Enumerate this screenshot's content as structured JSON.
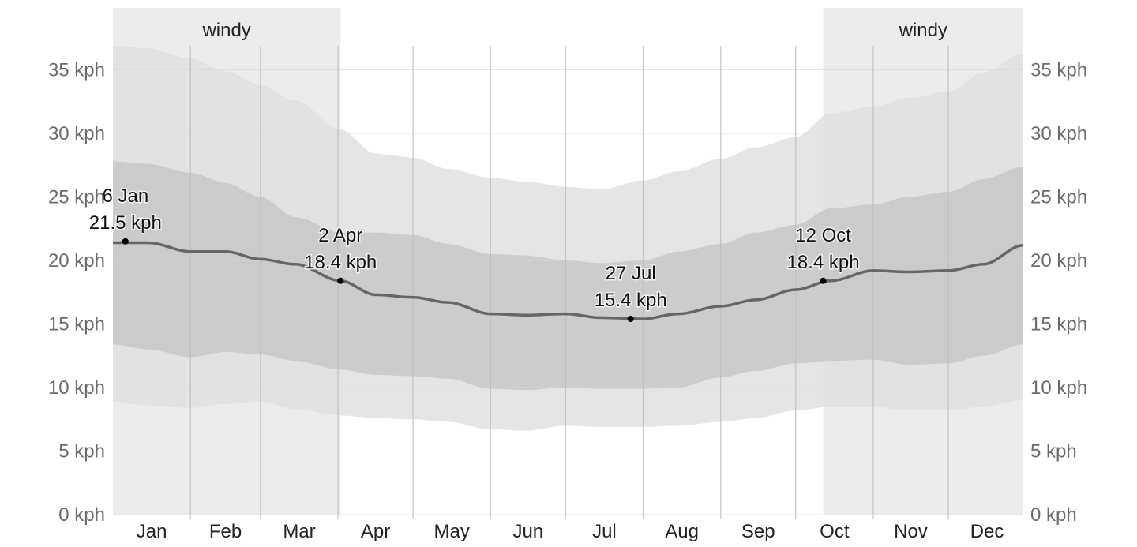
{
  "chart_data": {
    "type": "area",
    "y_unit": "kph",
    "ylim": [
      0,
      37.5
    ],
    "y_ticks": [
      0,
      5,
      10,
      15,
      20,
      25,
      30,
      35
    ],
    "y_tick_labels": [
      "0 kph",
      "5 kph",
      "10 kph",
      "15 kph",
      "20 kph",
      "25 kph",
      "30 kph",
      "35 kph"
    ],
    "months": [
      "Jan",
      "Feb",
      "Mar",
      "Apr",
      "May",
      "Jun",
      "Jul",
      "Aug",
      "Sep",
      "Oct",
      "Nov",
      "Dec"
    ],
    "season_bands": [
      {
        "label": "windy",
        "start": "1 Jan",
        "end": "2 Apr"
      },
      {
        "label": "windy",
        "start": "12 Oct",
        "end": "31 Dec"
      }
    ],
    "x_day_of_year": [
      1,
      15,
      32,
      46,
      60,
      74,
      92,
      106,
      121,
      135,
      152,
      166,
      182,
      196,
      213,
      227,
      244,
      258,
      274,
      288,
      305,
      319,
      335,
      349,
      365
    ],
    "p10": [
      8.9,
      8.6,
      8.4,
      8.7,
      8.9,
      8.3,
      7.8,
      7.6,
      7.5,
      7.3,
      6.7,
      6.6,
      7.0,
      6.9,
      6.9,
      7.0,
      7.3,
      7.6,
      8.2,
      8.5,
      8.5,
      8.2,
      8.2,
      8.5,
      9.0
    ],
    "p25": [
      13.4,
      13.0,
      12.4,
      12.8,
      12.6,
      12.1,
      11.4,
      11.0,
      10.9,
      10.7,
      9.9,
      9.8,
      10.0,
      9.9,
      9.9,
      10.0,
      10.8,
      11.3,
      11.9,
      12.1,
      12.2,
      11.8,
      11.9,
      12.5,
      13.4
    ],
    "avg": [
      21.4,
      21.4,
      20.7,
      20.7,
      20.1,
      19.7,
      18.4,
      17.3,
      17.1,
      16.7,
      15.8,
      15.7,
      15.8,
      15.5,
      15.4,
      15.8,
      16.4,
      16.9,
      17.7,
      18.4,
      19.2,
      19.1,
      19.2,
      19.7,
      21.2
    ],
    "p75": [
      27.8,
      27.6,
      26.9,
      26.1,
      25.0,
      23.4,
      22.2,
      22.2,
      22.0,
      21.3,
      20.5,
      20.4,
      20.0,
      19.8,
      20.0,
      20.7,
      21.3,
      22.2,
      22.8,
      24.1,
      24.4,
      25.0,
      25.4,
      26.4,
      27.4
    ],
    "p90": [
      36.9,
      36.7,
      35.9,
      34.9,
      33.8,
      32.6,
      30.3,
      28.4,
      28.1,
      27.2,
      26.5,
      26.2,
      25.8,
      25.6,
      26.3,
      27.0,
      28.0,
      28.9,
      29.7,
      31.6,
      32.1,
      32.8,
      33.3,
      34.8,
      36.3
    ],
    "annotations": [
      {
        "label_date": "6 Jan",
        "label_value": "21.5 kph",
        "day": 6,
        "value": 21.5
      },
      {
        "label_date": "2 Apr",
        "label_value": "18.4 kph",
        "day": 92,
        "value": 18.4
      },
      {
        "label_date": "27 Jul",
        "label_value": "15.4 kph",
        "day": 208,
        "value": 15.4
      },
      {
        "label_date": "12 Oct",
        "label_value": "18.4 kph",
        "day": 285,
        "value": 18.4
      }
    ],
    "grid": true,
    "colors": {
      "band_outer": "#e0e0e0",
      "band_inner": "#c9c9c9",
      "average_line": "#666666",
      "season_band": "#ececec",
      "gridline": "#d8d8d8",
      "month_separator": "#bcbcbc"
    }
  }
}
